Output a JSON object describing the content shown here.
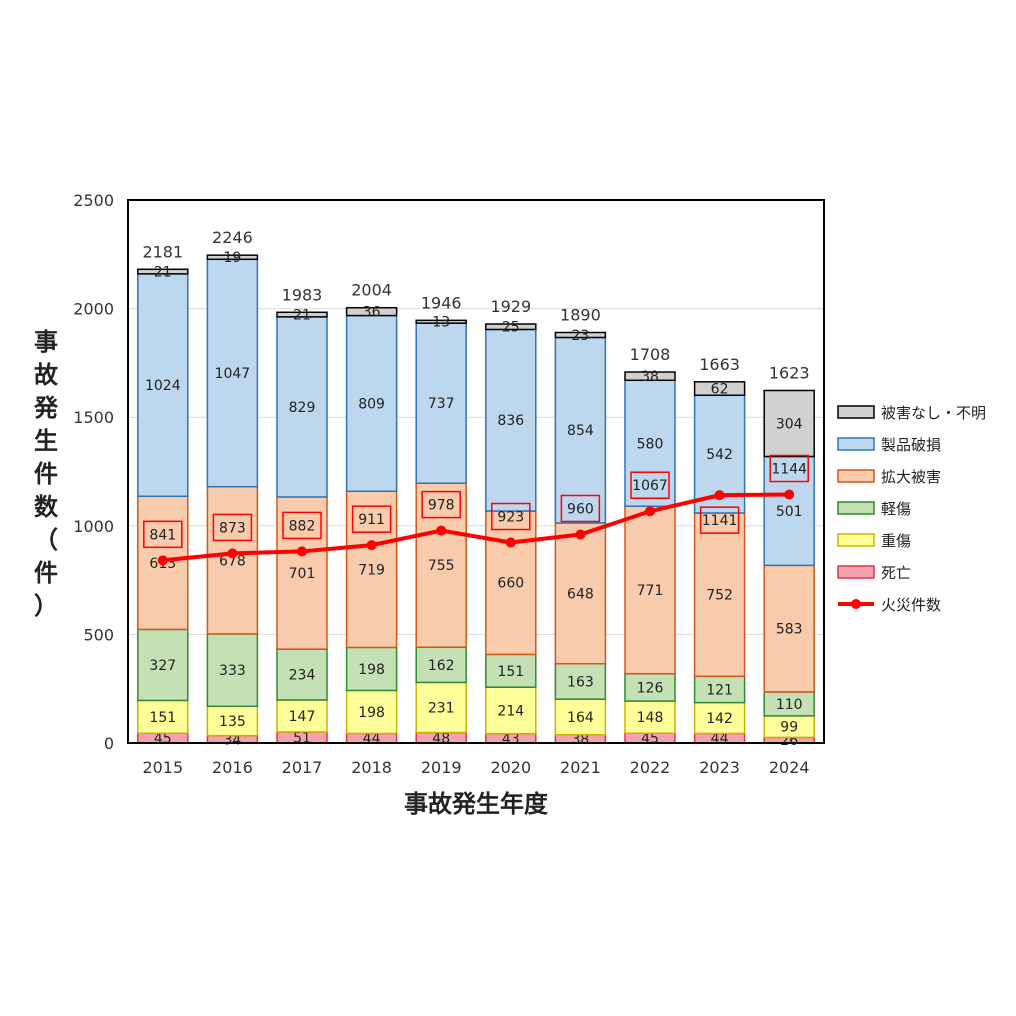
{
  "chart_data": {
    "type": "bar",
    "stacked": true,
    "title": "",
    "xlabel": "事故発生年度",
    "ylabel": "事故発生件数（件）",
    "ylim": [
      0,
      2500
    ],
    "yticks": [
      0,
      500,
      1000,
      1500,
      2000,
      2500
    ],
    "grid": true,
    "legend_position": "right",
    "categories": [
      "2015",
      "2016",
      "2017",
      "2018",
      "2019",
      "2020",
      "2021",
      "2022",
      "2023",
      "2024"
    ],
    "series": [
      {
        "name": "死亡",
        "fill": "#f4a3ae",
        "stroke": "#e0304a",
        "values": [
          45,
          34,
          51,
          44,
          48,
          43,
          38,
          45,
          44,
          26
        ]
      },
      {
        "name": "重傷",
        "fill": "#ffff99",
        "stroke": "#c8b400",
        "values": [
          151,
          135,
          147,
          198,
          231,
          214,
          164,
          148,
          142,
          99
        ]
      },
      {
        "name": "軽傷",
        "fill": "#c5e0b4",
        "stroke": "#2e8b2e",
        "values": [
          327,
          333,
          234,
          198,
          162,
          151,
          163,
          126,
          121,
          110
        ]
      },
      {
        "name": "拡大被害",
        "fill": "#f8cbad",
        "stroke": "#d0581a",
        "values": [
          613,
          678,
          701,
          719,
          755,
          660,
          648,
          771,
          752,
          583
        ]
      },
      {
        "name": "製品破損",
        "fill": "#bdd7ee",
        "stroke": "#2e75b6",
        "values": [
          1024,
          1047,
          829,
          809,
          737,
          836,
          854,
          580,
          542,
          501
        ]
      },
      {
        "name": "被害なし・不明",
        "fill": "#d0d0d0",
        "stroke": "#000000",
        "values": [
          21,
          19,
          21,
          36,
          13,
          25,
          23,
          38,
          62,
          304
        ]
      }
    ],
    "totals": [
      2181,
      2246,
      1983,
      2004,
      1946,
      1929,
      1890,
      1708,
      1663,
      1623
    ],
    "line_series": {
      "name": "火災件数",
      "color": "#ff0000",
      "values": [
        841,
        873,
        882,
        911,
        978,
        923,
        960,
        1067,
        1141,
        1144
      ]
    }
  }
}
